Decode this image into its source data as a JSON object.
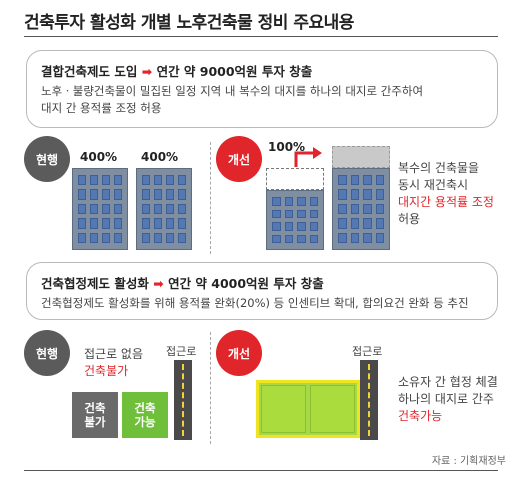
{
  "title": "건축투자 활성화 개별 노후건축물 정비 주요내용",
  "section1": {
    "heading": "결합건축제도 도입",
    "arrow": "➡",
    "heading_result": "연간 약 9000억원 투자 창출",
    "body_line1": "노후ㆍ불량건축물이 밀집된 일정 지역 내 복수의 대지를 하나의 대지로 간주하여",
    "body_line2": "대지 간 용적률 조정 허용",
    "current_label": "현행",
    "improve_label": "개선",
    "pct_left": "400%",
    "pct_right": "400%",
    "pct_improved": "100%",
    "desc_line1": "복수의 건축물을",
    "desc_line2": "동시 재건축시",
    "desc_line3": "대지간 용적률 조정",
    "desc_line4": "허용"
  },
  "section2": {
    "heading": "건축협정제도 활성화",
    "arrow": "➡",
    "heading_result": "연간 약 4000억원 투자 창출",
    "body_line1": "건축협정제도 활성화를 위해 용적률 완화(20%) 등 인센티브 확대, 합의요건 완화 등 추진",
    "current_label": "현행",
    "improve_label": "개선",
    "no_road_line1": "접근로 없음",
    "no_road_line2": "건축불가",
    "road_label_left": "접근로",
    "road_label_right": "접근로",
    "lot_gray_line1": "건축",
    "lot_gray_line2": "불가",
    "lot_green_line1": "건축",
    "lot_green_line2": "가능",
    "desc_line1": "소유자 간 협정 체결",
    "desc_line2": "하나의 대지로 간주",
    "desc_line3": "건축가능"
  },
  "source": "자료 : 기획재정부"
}
